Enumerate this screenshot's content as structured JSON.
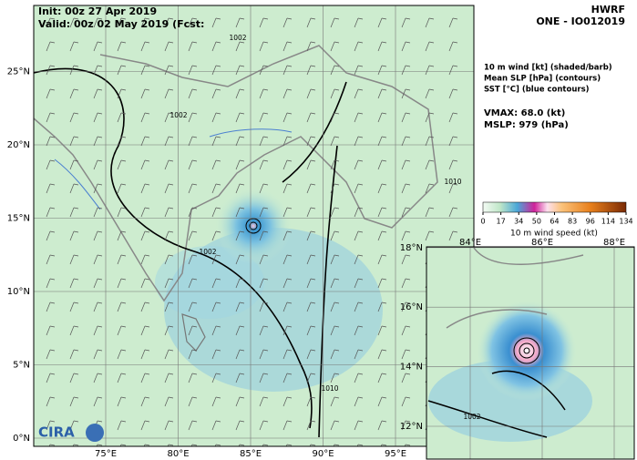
{
  "header": {
    "init": "Init:  00z 27 Apr 2019",
    "valid": "Valid: 00z 02 May 2019 (Fcst:",
    "model": "HWRF",
    "storm": "ONE - IO012019"
  },
  "legend": {
    "lines": [
      "10 m wind [kt] (shaded/barb)",
      "Mean SLP [hPa] (contours)",
      "SST [°C] (blue contours)"
    ],
    "vmax": "VMAX:  68.0 (kt)",
    "mslp": "MSLP:  979 (hPa)"
  },
  "colorbar": {
    "ticks": [
      0,
      17,
      34,
      50,
      64,
      83,
      96,
      114,
      134
    ],
    "label": "10 m wind speed (kt)"
  },
  "main_map": {
    "lon_ticks": [
      {
        "value": 75,
        "label": "75°E"
      },
      {
        "value": 80,
        "label": "80°E"
      },
      {
        "value": 85,
        "label": "85°E"
      },
      {
        "value": 90,
        "label": "90°E"
      },
      {
        "value": 95,
        "label": "95°E"
      }
    ],
    "lat_ticks": [
      {
        "value": 0,
        "label": "0°N"
      },
      {
        "value": 5,
        "label": "5°N"
      },
      {
        "value": 10,
        "label": "10°N"
      },
      {
        "value": 15,
        "label": "15°N"
      },
      {
        "value": 20,
        "label": "20°N"
      },
      {
        "value": 25,
        "label": "25°N"
      }
    ],
    "contour_labels": [
      "1002",
      "1002",
      "1002",
      "1010",
      "1010"
    ]
  },
  "inset_map": {
    "lon_ticks": [
      {
        "value": 84,
        "label": "84°E"
      },
      {
        "value": 86,
        "label": "86°E"
      },
      {
        "value": 88,
        "label": "88°E"
      }
    ],
    "lat_ticks": [
      {
        "value": 12,
        "label": "12°N"
      },
      {
        "value": 14,
        "label": "14°N"
      },
      {
        "value": 16,
        "label": "16°N"
      },
      {
        "value": 18,
        "label": "18°N"
      }
    ],
    "contour_labels": [
      "1002"
    ]
  },
  "logo": "CIRA"
}
